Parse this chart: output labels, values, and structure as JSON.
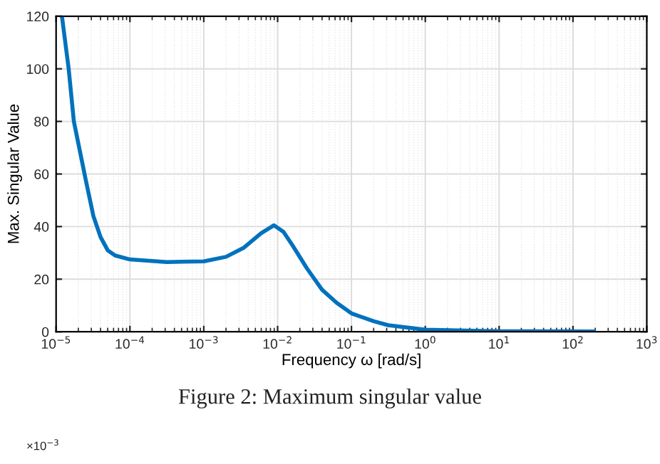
{
  "chart_data": {
    "type": "line",
    "xlabel": "Frequency ω [rad/s]",
    "ylabel": "Max. Singular Value",
    "x": [
      1.2e-05,
      1.48e-05,
      1.74e-05,
      2.51e-05,
      3.2e-05,
      4e-05,
      5e-05,
      6.3e-05,
      0.0001,
      0.000316,
      0.001,
      0.002,
      0.0035,
      0.006,
      0.0089,
      0.012,
      0.0158,
      0.0251,
      0.04,
      0.0631,
      0.1,
      0.2,
      0.316,
      1,
      10,
      190
    ],
    "series": [
      {
        "color": "#0072bd",
        "values": [
          120,
          100,
          80,
          58,
          44,
          36,
          31,
          29,
          27.5,
          26.5,
          26.8,
          28.5,
          32,
          37.5,
          40.5,
          38,
          33,
          24,
          16,
          11,
          7,
          4,
          2.5,
          0.8,
          0.2,
          0.1
        ]
      }
    ],
    "log": "x",
    "xlim": [
      1e-05,
      1000
    ],
    "ylim": [
      0,
      120
    ],
    "xticks": [
      {
        "value": 1e-05,
        "label": "10$^{−5}$"
      },
      {
        "value": 0.0001,
        "label": "10$^{−4}$"
      },
      {
        "value": 0.001,
        "label": "10$^{−3}$"
      },
      {
        "value": 0.01,
        "label": "10$^{−2}$"
      },
      {
        "value": 0.1,
        "label": "10$^{−1}$"
      },
      {
        "value": 1,
        "label": "10$^{0}$"
      },
      {
        "value": 10,
        "label": "10$^{1}$"
      },
      {
        "value": 100,
        "label": "10$^{2}$"
      },
      {
        "value": 1000,
        "label": "10$^{3}$"
      }
    ],
    "yticks": [
      0,
      20,
      40,
      60,
      80,
      100,
      120
    ],
    "grid": true,
    "annotations": [
      "Figure 2: Maximum singular value",
      "×10$^{−3}$"
    ]
  }
}
